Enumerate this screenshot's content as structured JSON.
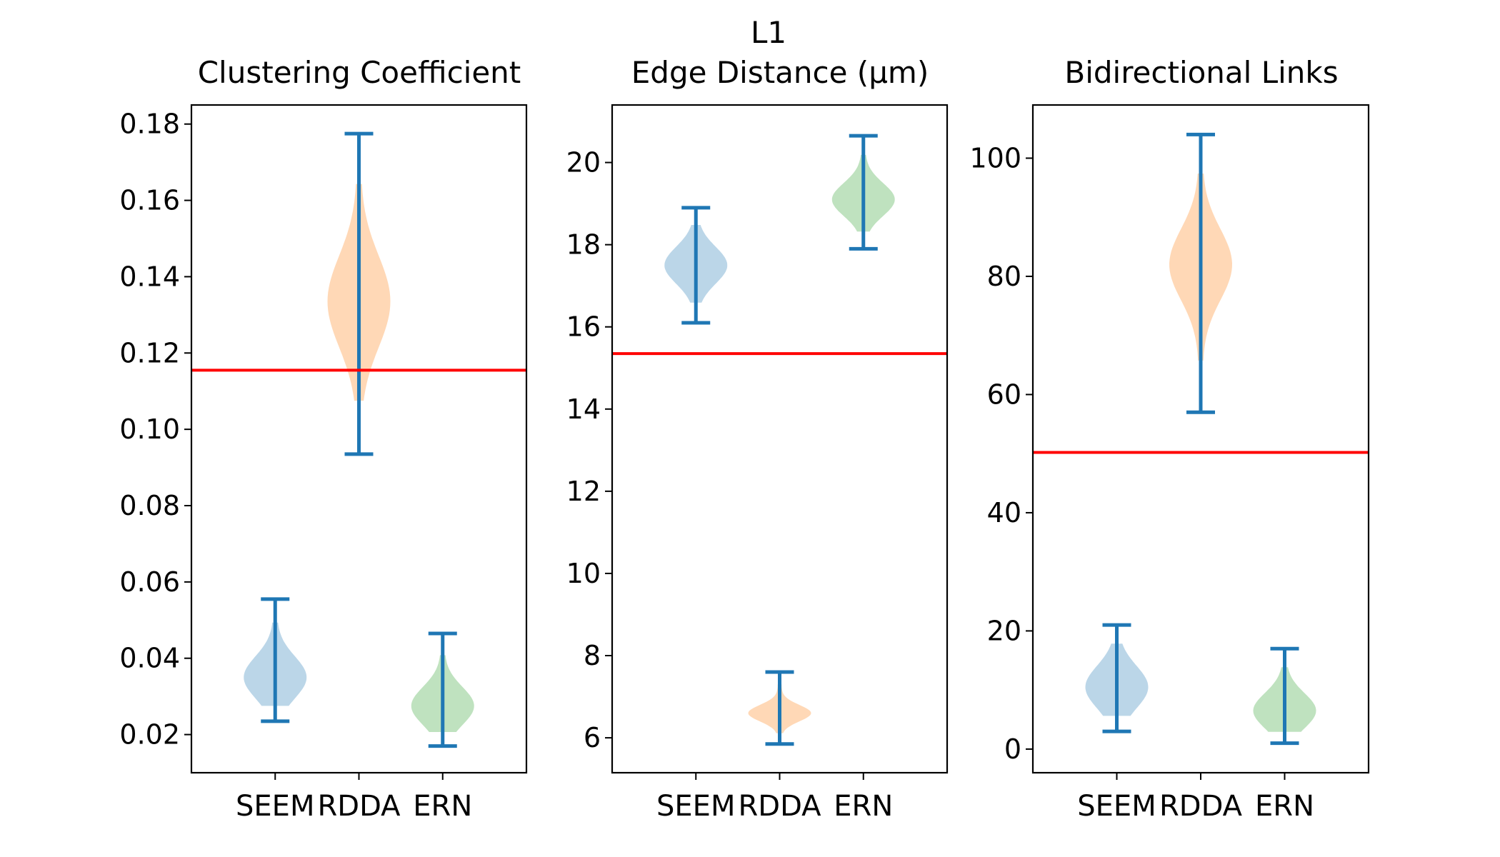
{
  "figure": {
    "suptitle": "L1"
  },
  "colors": {
    "SEEM": "#1f77b4",
    "RDDA": "#ff7f0e",
    "ERN": "#2ca02c",
    "bar_line": "#1f77b4",
    "reference_line": "#ff0000"
  },
  "chart_data": [
    {
      "type": "violin",
      "title": "Clustering Coefficient",
      "categories": [
        "SEEM",
        "RDDA",
        "ERN"
      ],
      "ylim": [
        0.01,
        0.185
      ],
      "yticks": [
        0.02,
        0.04,
        0.06,
        0.08,
        0.1,
        0.12,
        0.14,
        0.16,
        0.18
      ],
      "ytick_labels": [
        "0.02",
        "0.04",
        "0.06",
        "0.08",
        "0.10",
        "0.12",
        "0.14",
        "0.16",
        "0.18"
      ],
      "reference_line": 0.1155,
      "violins": [
        {
          "name": "SEEM",
          "min": 0.0235,
          "max": 0.0555,
          "median": 0.035,
          "spread": 0.0055
        },
        {
          "name": "RDDA",
          "min": 0.0935,
          "max": 0.1775,
          "median": 0.1335,
          "spread": 0.012
        },
        {
          "name": "ERN",
          "min": 0.017,
          "max": 0.0465,
          "median": 0.0275,
          "spread": 0.005
        }
      ]
    },
    {
      "type": "violin",
      "title": "Edge Distance (μm)",
      "categories": [
        "SEEM",
        "RDDA",
        "ERN"
      ],
      "ylim": [
        5.15,
        21.4
      ],
      "yticks": [
        6,
        8,
        10,
        12,
        14,
        16,
        18,
        20
      ],
      "ytick_labels": [
        "6",
        "8",
        "10",
        "12",
        "14",
        "16",
        "18",
        "20"
      ],
      "reference_line": 15.35,
      "violins": [
        {
          "name": "SEEM",
          "min": 16.1,
          "max": 18.9,
          "median": 17.5,
          "spread": 0.45
        },
        {
          "name": "RDDA",
          "min": 5.85,
          "max": 7.6,
          "median": 6.6,
          "spread": 0.2
        },
        {
          "name": "ERN",
          "min": 17.9,
          "max": 20.65,
          "median": 19.1,
          "spread": 0.4
        }
      ]
    },
    {
      "type": "violin",
      "title": "Bidirectional Links",
      "categories": [
        "SEEM",
        "RDDA",
        "ERN"
      ],
      "ylim": [
        -4,
        109
      ],
      "yticks": [
        0,
        20,
        40,
        60,
        80,
        100
      ],
      "ytick_labels": [
        "0",
        "20",
        "40",
        "60",
        "80",
        "100"
      ],
      "reference_line": 50.2,
      "violins": [
        {
          "name": "SEEM",
          "min": 3,
          "max": 21,
          "median": 10.5,
          "spread": 3.6
        },
        {
          "name": "RDDA",
          "min": 57,
          "max": 104,
          "median": 82,
          "spread": 6
        },
        {
          "name": "ERN",
          "min": 1,
          "max": 17,
          "median": 6.5,
          "spread": 3
        }
      ]
    }
  ]
}
